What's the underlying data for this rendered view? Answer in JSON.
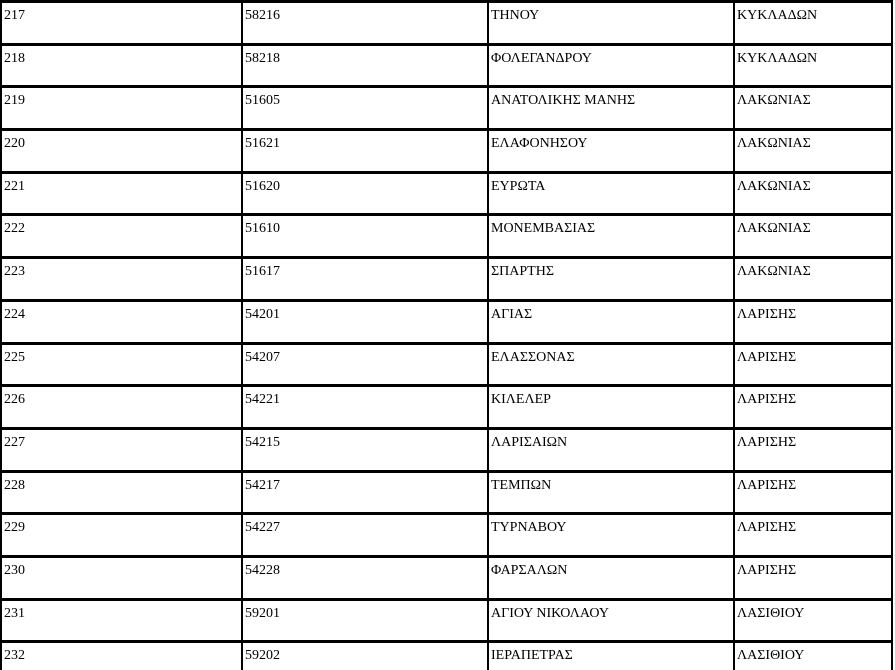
{
  "colors": {
    "border": "#000000",
    "background": "#ffffff",
    "text": "#000000"
  },
  "table": {
    "rows": [
      {
        "num": "217",
        "code": "58216",
        "name": "ΤΗΝΟΥ",
        "region": "ΚΥΚΛΑΔΩΝ"
      },
      {
        "num": "218",
        "code": "58218",
        "name": "ΦΟΛΕΓΑΝΔΡΟΥ",
        "region": "ΚΥΚΛΑΔΩΝ"
      },
      {
        "num": "219",
        "code": "51605",
        "name": "ΑΝΑΤΟΛΙΚΗΣ ΜΑΝΗΣ",
        "region": "ΛΑΚΩΝΙΑΣ"
      },
      {
        "num": "220",
        "code": "51621",
        "name": "ΕΛΑΦΟΝΗΣΟΥ",
        "region": "ΛΑΚΩΝΙΑΣ"
      },
      {
        "num": "221",
        "code": "51620",
        "name": "ΕΥΡΩΤΑ",
        "region": "ΛΑΚΩΝΙΑΣ"
      },
      {
        "num": "222",
        "code": "51610",
        "name": "ΜΟΝΕΜΒΑΣΙΑΣ",
        "region": "ΛΑΚΩΝΙΑΣ"
      },
      {
        "num": "223",
        "code": "51617",
        "name": "ΣΠΑΡΤΗΣ",
        "region": "ΛΑΚΩΝΙΑΣ"
      },
      {
        "num": "224",
        "code": "54201",
        "name": "ΑΓΙΑΣ",
        "region": "ΛΑΡΙΣΗΣ"
      },
      {
        "num": "225",
        "code": "54207",
        "name": "ΕΛΑΣΣΟΝΑΣ",
        "region": "ΛΑΡΙΣΗΣ"
      },
      {
        "num": "226",
        "code": "54221",
        "name": "ΚΙΛΕΛΕΡ",
        "region": "ΛΑΡΙΣΗΣ"
      },
      {
        "num": "227",
        "code": "54215",
        "name": "ΛΑΡΙΣΑΙΩΝ",
        "region": "ΛΑΡΙΣΗΣ"
      },
      {
        "num": "228",
        "code": "54217",
        "name": "ΤΕΜΠΩΝ",
        "region": "ΛΑΡΙΣΗΣ"
      },
      {
        "num": "229",
        "code": "54227",
        "name": "ΤΥΡΝΑΒΟΥ",
        "region": "ΛΑΡΙΣΗΣ"
      },
      {
        "num": "230",
        "code": "54228",
        "name": "ΦΑΡΣΑΛΩΝ",
        "region": "ΛΑΡΙΣΗΣ"
      },
      {
        "num": "231",
        "code": "59201",
        "name": "ΑΓΙΟΥ ΝΙΚΟΛΑΟΥ",
        "region": "ΛΑΣΙΘΙΟΥ"
      },
      {
        "num": "232",
        "code": "59202",
        "name": "ΙΕΡΑΠΕΤΡΑΣ",
        "region": "ΛΑΣΙΘΙΟΥ"
      }
    ]
  }
}
